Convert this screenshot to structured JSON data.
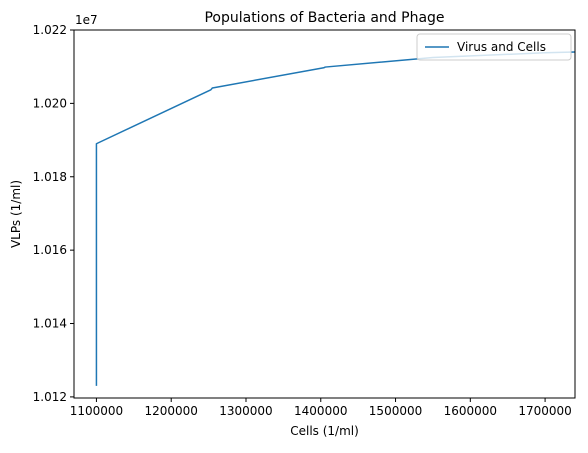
{
  "chart_data": {
    "type": "line",
    "title": "Populations of Bacteria and Phage",
    "xlabel": "Cells (1/ml)",
    "ylabel": "VLPs (1/ml)",
    "y_offset_label": "1e7",
    "xlim": [
      1070000,
      1740000
    ],
    "ylim": [
      1.01197,
      1.022
    ],
    "x_ticks": [
      1100000,
      1200000,
      1300000,
      1400000,
      1500000,
      1600000,
      1700000
    ],
    "x_tick_labels": [
      "1100000",
      "1200000",
      "1300000",
      "1400000",
      "1500000",
      "1600000",
      "1700000"
    ],
    "y_ticks": [
      1.012,
      1.014,
      1.016,
      1.018,
      1.02,
      1.022
    ],
    "y_tick_labels": [
      "1.012",
      "1.014",
      "1.016",
      "1.018",
      "1.020",
      "1.022"
    ],
    "grid": false,
    "legend_position": "top-right",
    "series": [
      {
        "name": "Virus and Cells",
        "color": "#1f77b4",
        "points": [
          [
            1100000,
            1.0123
          ],
          [
            1100000,
            1.0189
          ],
          [
            1102000,
            1.01892
          ],
          [
            1253000,
            1.02037
          ],
          [
            1255000,
            1.02042
          ],
          [
            1404000,
            1.02097
          ],
          [
            1406000,
            1.02099
          ],
          [
            1550000,
            1.02125
          ],
          [
            1700000,
            1.02138
          ],
          [
            1740000,
            1.0214
          ]
        ]
      }
    ]
  }
}
